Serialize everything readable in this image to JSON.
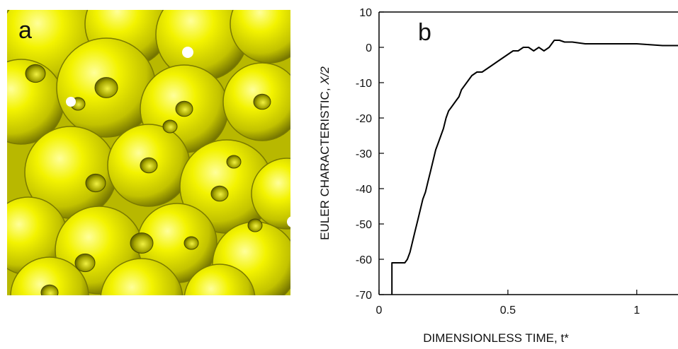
{
  "panels": {
    "a_label": "a",
    "b_label": "b"
  },
  "colors": {
    "sphere": "#e6e600",
    "sphere_dark": "#8f8f00",
    "hole": "#5e5e00",
    "line": "#000000"
  },
  "chart_data": {
    "type": "line",
    "title": "",
    "xlabel": "DIMENSIONLESS TIME, t*",
    "ylabel_prefix": "EULER CHARACTERISTIC, ",
    "ylabel_symbol": "X/2",
    "xlim": [
      0,
      1.16
    ],
    "ylim": [
      -70,
      10
    ],
    "xticks": [
      0,
      0.5,
      1
    ],
    "xtick_labels": [
      "0",
      "0.5",
      "1"
    ],
    "yticks": [
      10,
      0,
      -10,
      -20,
      -30,
      -40,
      -50,
      -60,
      -70
    ],
    "ytick_labels": [
      "10",
      "0",
      "-10",
      "-20",
      "-30",
      "-40",
      "-50",
      "-60",
      "-70"
    ],
    "grid": false,
    "series": [
      {
        "x": [
          0.05,
          0.05,
          0.055,
          0.1,
          0.11,
          0.12,
          0.13,
          0.14,
          0.15,
          0.16,
          0.17,
          0.18,
          0.19,
          0.2,
          0.21,
          0.22,
          0.23,
          0.24,
          0.25,
          0.26,
          0.27,
          0.28,
          0.29,
          0.3,
          0.31,
          0.32,
          0.34,
          0.36,
          0.38,
          0.4,
          0.42,
          0.44,
          0.46,
          0.48,
          0.5,
          0.52,
          0.54,
          0.56,
          0.58,
          0.6,
          0.62,
          0.64,
          0.66,
          0.68,
          0.7,
          0.72,
          0.75,
          0.8,
          0.9,
          1.0,
          1.1,
          1.16
        ],
        "y": [
          -70,
          -61,
          -61,
          -61,
          -60,
          -58,
          -55,
          -52,
          -49,
          -46,
          -43,
          -41,
          -38,
          -35,
          -32,
          -29,
          -27,
          -25,
          -23,
          -20,
          -18,
          -17,
          -16,
          -15,
          -14,
          -12,
          -10,
          -8,
          -7,
          -7,
          -6,
          -5,
          -4,
          -3,
          -2,
          -1,
          -1,
          0,
          0,
          -1,
          0,
          -1,
          0,
          2,
          2,
          1.5,
          1.5,
          1,
          1,
          1,
          0.5,
          0.5
        ]
      }
    ]
  }
}
